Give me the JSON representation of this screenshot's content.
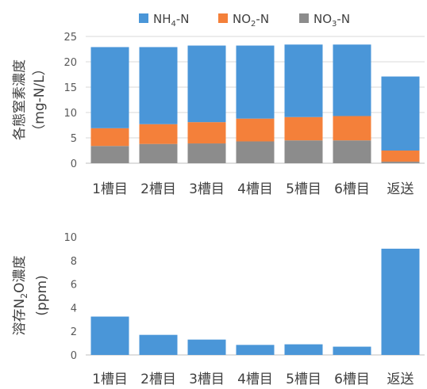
{
  "chart_data": [
    {
      "type": "bar",
      "stacked": true,
      "ylabel": "各態窒素濃度",
      "ylabel_unit": "（mg-N/L）",
      "categories": [
        "1槽目",
        "2槽目",
        "3槽目",
        "4槽目",
        "5槽目",
        "6槽目",
        "返送"
      ],
      "ylim": [
        0,
        25
      ],
      "yticks": [
        "0",
        "5",
        "10",
        "15",
        "20",
        "25"
      ],
      "legend_position": "top",
      "series": [
        {
          "name": "NO3-N",
          "label_main": "NO",
          "label_sub": "3",
          "label_tail": "-N",
          "color": "#8c8c8c",
          "values": [
            3.4,
            3.8,
            3.9,
            4.3,
            4.5,
            4.5,
            0.3
          ]
        },
        {
          "name": "NO2-N",
          "label_main": "NO",
          "label_sub": "2",
          "label_tail": "-N",
          "color": "#f4803a",
          "values": [
            3.5,
            3.9,
            4.2,
            4.5,
            4.6,
            4.8,
            2.2
          ]
        },
        {
          "name": "NH4-N",
          "label_main": "NH",
          "label_sub": "4",
          "label_tail": "-N",
          "color": "#4a96d8",
          "values": [
            16.0,
            15.2,
            15.1,
            14.4,
            14.3,
            14.1,
            14.6
          ]
        }
      ]
    },
    {
      "type": "bar",
      "ylabel_pre": "溶存N",
      "ylabel_sub": "2",
      "ylabel_post": "O濃度",
      "ylabel_unit": "(ppm)",
      "categories": [
        "1槽目",
        "2槽目",
        "3槽目",
        "4槽目",
        "5槽目",
        "6槽目",
        "返送"
      ],
      "ylim": [
        0,
        10
      ],
      "yticks": [
        "0",
        "2",
        "4",
        "6",
        "8",
        "10"
      ],
      "color": "#4a96d8",
      "values": [
        3.25,
        1.7,
        1.3,
        0.85,
        0.9,
        0.7,
        9.0
      ]
    }
  ]
}
